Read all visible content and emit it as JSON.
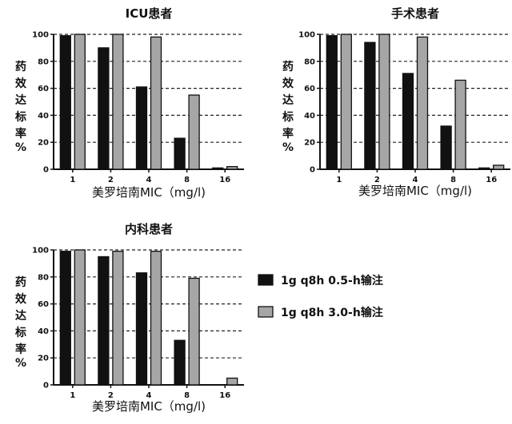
{
  "chart_data": [
    {
      "type": "bar",
      "title": "ICU患者",
      "xlabel": "美罗培南MIC（mg/l)",
      "ylabel": [
        "药",
        "效",
        "达",
        "标",
        "率",
        "%"
      ],
      "categories": [
        "1",
        "2",
        "4",
        "8",
        "16"
      ],
      "ylim": [
        0,
        100
      ],
      "yticks": [
        0,
        20,
        40,
        60,
        80,
        100
      ],
      "grid": "dashed horizontal",
      "series": [
        {
          "name": "1g q8h 0.5-h输注",
          "color": "#111111",
          "values": [
            99,
            90,
            61,
            23,
            1
          ]
        },
        {
          "name": "1g q8h 3.0-h输注",
          "color": "#a6a6a6",
          "values": [
            100,
            100,
            98,
            55,
            2
          ]
        }
      ]
    },
    {
      "type": "bar",
      "title": "手术患者",
      "xlabel": "美罗培南MIC（mg/l)",
      "ylabel": [
        "药",
        "效",
        "达",
        "标",
        "率",
        "%"
      ],
      "categories": [
        "1",
        "2",
        "4",
        "8",
        "16"
      ],
      "ylim": [
        0,
        100
      ],
      "yticks": [
        0,
        20,
        40,
        60,
        80,
        100
      ],
      "grid": "dashed horizontal",
      "series": [
        {
          "name": "1g q8h 0.5-h输注",
          "color": "#111111",
          "values": [
            99,
            94,
            71,
            32,
            1
          ]
        },
        {
          "name": "1g q8h 3.0-h输注",
          "color": "#a6a6a6",
          "values": [
            100,
            100,
            98,
            66,
            3
          ]
        }
      ]
    },
    {
      "type": "bar",
      "title": "内科患者",
      "xlabel": "美罗培南MIC（mg/l)",
      "ylabel": [
        "药",
        "效",
        "达",
        "标",
        "率",
        "%"
      ],
      "categories": [
        "1",
        "2",
        "4",
        "8",
        "16"
      ],
      "ylim": [
        0,
        100
      ],
      "yticks": [
        0,
        20,
        40,
        60,
        80,
        100
      ],
      "grid": "dashed horizontal",
      "series": [
        {
          "name": "1g q8h 0.5-h输注",
          "color": "#111111",
          "values": [
            99,
            95,
            83,
            33,
            0
          ]
        },
        {
          "name": "1g q8h 3.0-h输注",
          "color": "#a6a6a6",
          "values": [
            100,
            99,
            99,
            79,
            5
          ]
        }
      ]
    }
  ],
  "legend": {
    "placement": "right of bottom-left chart",
    "items": [
      {
        "label": "1g q8h 0.5-h输注",
        "color": "#111111"
      },
      {
        "label": "1g q8h 3.0-h输注",
        "color": "#a6a6a6"
      }
    ]
  }
}
